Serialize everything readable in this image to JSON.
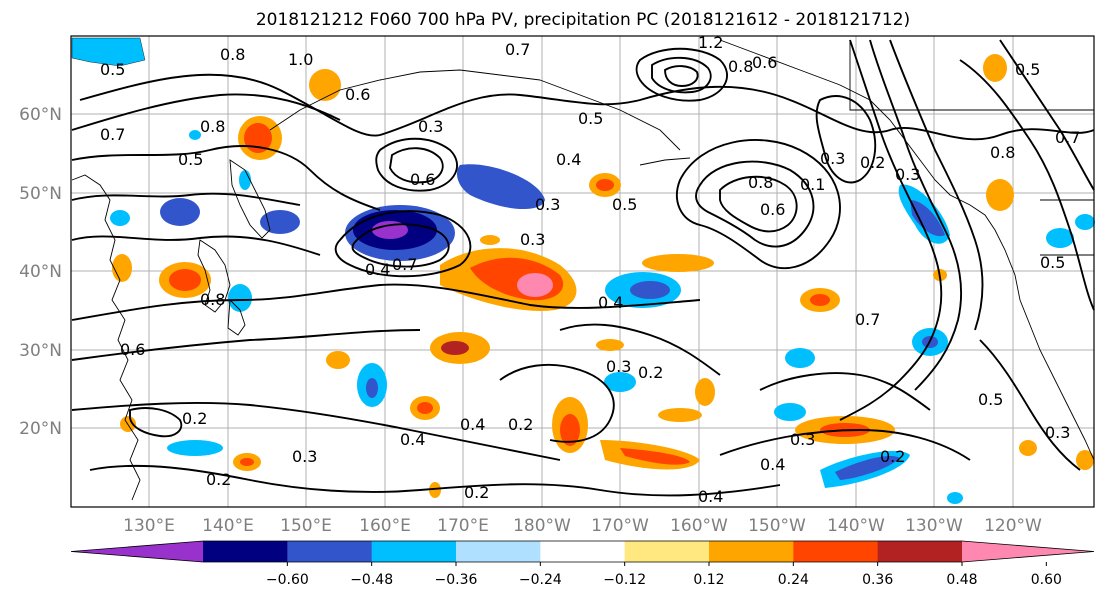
{
  "title": "2018121212 F060 700 hPa PV, precipitation PC (2018121612 - 2018121712)",
  "latitude_labels": [
    "60°N",
    "50°N",
    "40°N",
    "30°N",
    "20°N"
  ],
  "longitude_labels": [
    "130°E",
    "140°E",
    "150°E",
    "160°E",
    "170°E",
    "180°W",
    "170°W",
    "160°W",
    "150°W",
    "140°W",
    "130°W",
    "120°W"
  ],
  "colorbar": {
    "tick_labels": [
      "−0.60",
      "−0.48",
      "−0.36",
      "−0.24",
      "−0.12",
      "0.12",
      "0.24",
      "0.36",
      "0.48",
      "0.60"
    ],
    "colors": [
      "#9932cc",
      "#000080",
      "#3355cc",
      "#00bfff",
      "#b0e0ff",
      "#ffffff",
      "#ffe880",
      "#ffa500",
      "#ff4500",
      "#b22222",
      "#ff88b0"
    ]
  },
  "contour_labels": [
    "0.8",
    "1.0",
    "0.7",
    "0.6",
    "0.5",
    "0.8",
    "0.3",
    "0.5",
    "0.4",
    "0.6",
    "0.7",
    "1.2",
    "0.8",
    "0.6",
    "0.3",
    "0.2",
    "0.8",
    "0.1",
    "0.5",
    "0.3",
    "0.4",
    "0.6",
    "0.7",
    "0.8",
    "0.3",
    "0.4",
    "0.7",
    "0.2",
    "0.4",
    "0.4",
    "0.2",
    "0.2",
    "0.3",
    "0.3",
    "0.4",
    "0.3",
    "0.2",
    "0.2",
    "0.2",
    "0.4",
    "0.5",
    "0.3",
    "0.7",
    "0.5",
    "0.8",
    "0.5",
    "0.6",
    "0.5",
    "0.3"
  ],
  "shading_colors": {
    "orange": "#ffa500",
    "red": "#ff4500",
    "darkred": "#b22222",
    "pink": "#ff88b0",
    "yellow": "#ffe880",
    "cyan": "#00bfff",
    "lightblue": "#b0e0ff",
    "blue": "#3355cc",
    "navy": "#000080",
    "purple": "#9932cc"
  }
}
